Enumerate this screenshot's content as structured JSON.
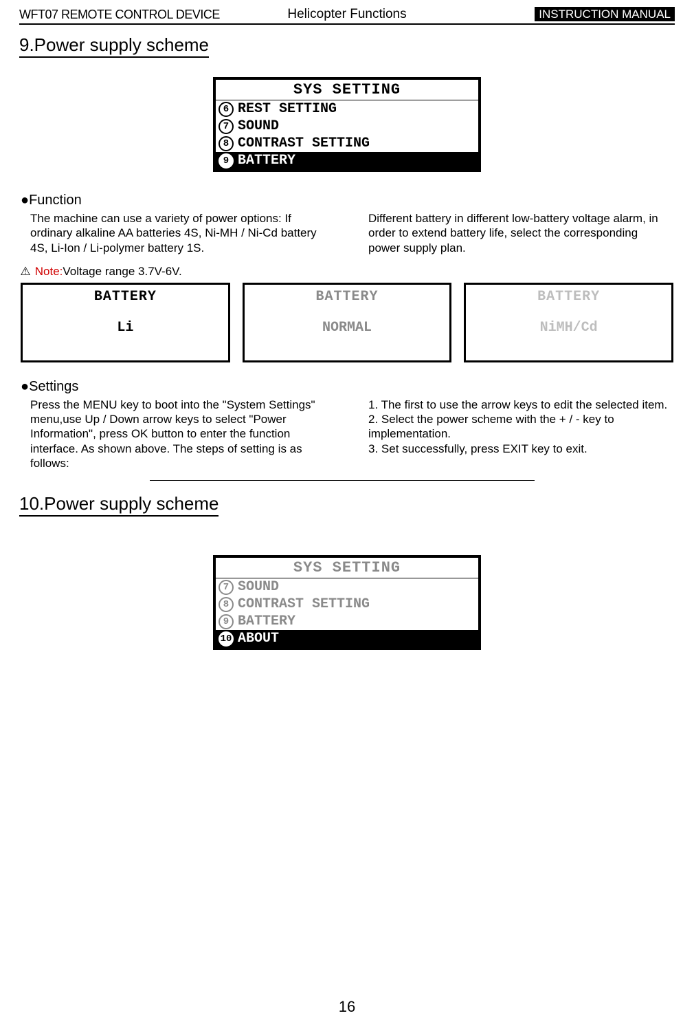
{
  "header": {
    "left": "WFT07 REMOTE CONTROL DEVICE",
    "center": "Helicopter Functions",
    "right": "INSTRUCTION MANUAL"
  },
  "section9": {
    "title": "9.Power supply scheme",
    "lcd": {
      "title": "SYS SETTING",
      "rows": [
        {
          "num": "6",
          "label": "REST SETTING",
          "selected": false
        },
        {
          "num": "7",
          "label": "SOUND",
          "selected": false
        },
        {
          "num": "8",
          "label": "CONTRAST SETTING",
          "selected": false
        },
        {
          "num": "9",
          "label": "BATTERY",
          "selected": true
        }
      ]
    },
    "function": {
      "heading": "●Function",
      "left": "The machine can use a variety of power options: If ordinary alkaline AA batteries 4S, Ni-MH / Ni-Cd battery 4S, Li-Ion / Li-polymer battery 1S.",
      "right": " Different battery in different low-battery voltage alarm, in order to extend battery life, select the corresponding power supply plan."
    },
    "note": {
      "icon": "⚠",
      "label": "Note:",
      "text": "Voltage range 3.7V-6V."
    },
    "battery_boxes": [
      {
        "title": "BATTERY",
        "value": "Li",
        "fade": "none"
      },
      {
        "title": "BATTERY",
        "value": "NORMAL",
        "fade": "faded"
      },
      {
        "title": "BATTERY",
        "value": "NiMH/Cd",
        "fade": "faded2"
      }
    ],
    "settings": {
      "heading": "●Settings",
      "left": "Press the MENU key to boot into the \"System Settings\" menu,use Up / Down arrow keys to select \"Power Information\", press OK button to enter the function interface. As shown above. The steps of setting is as follows:",
      "right": "1. The first to use the arrow keys to edit the selected item.\n2. Select the power scheme with the + / - key to implementation.\n3. Set successfully, press EXIT key to exit."
    }
  },
  "section10": {
    "title": "10.Power supply scheme",
    "lcd": {
      "title": "SYS SETTING",
      "title_faded": true,
      "rows": [
        {
          "num": "7",
          "label": "SOUND",
          "selected": false,
          "faded": true
        },
        {
          "num": "8",
          "label": "CONTRAST SETTING",
          "selected": false,
          "faded": true
        },
        {
          "num": "9",
          "label": "BATTERY",
          "selected": false,
          "faded": true
        },
        {
          "num": "10",
          "label": "ABOUT",
          "selected": true,
          "faded": false
        }
      ]
    }
  },
  "page_number": "16"
}
